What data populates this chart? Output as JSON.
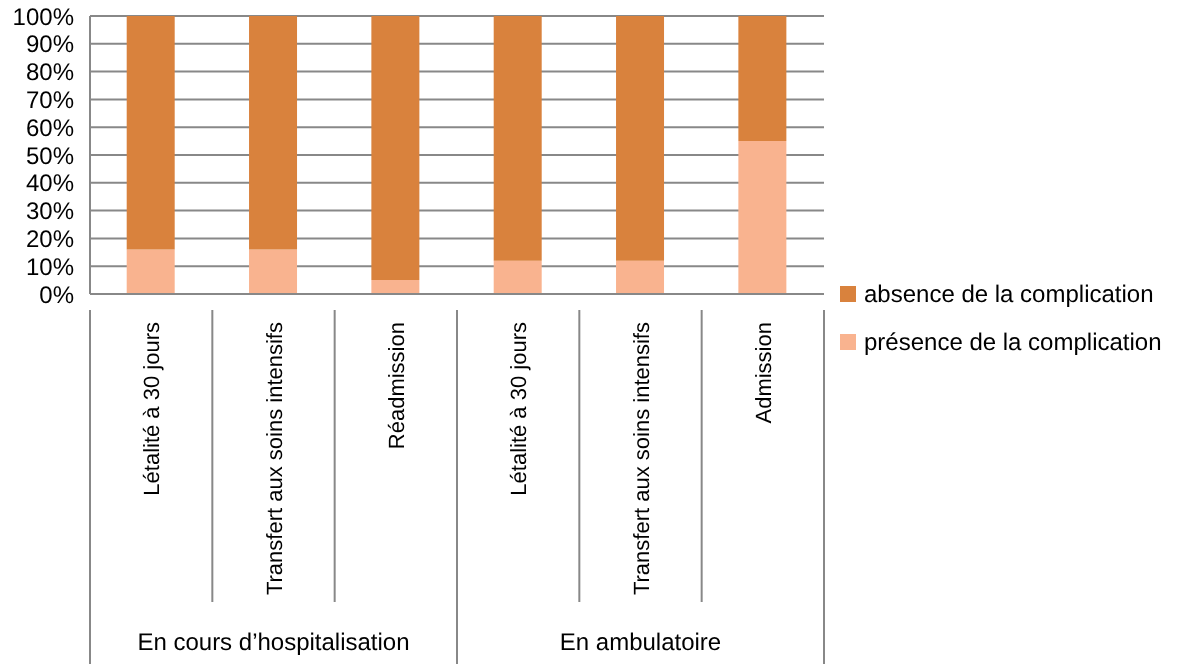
{
  "chart_data": {
    "type": "bar",
    "stacked": true,
    "categories": [
      "Létalité à 30 jours",
      "Transfert aux soins intensifs",
      "Réadmission",
      "Létalité à 30 jours",
      "Transfert aux soins intensifs",
      "Admission"
    ],
    "series": [
      {
        "name": "présence de la complication",
        "color": "#f9b38f",
        "values": [
          16,
          16,
          5,
          12,
          12,
          55
        ]
      },
      {
        "name": "absence de la complication",
        "color": "#d9823d",
        "values": [
          84,
          84,
          95,
          88,
          88,
          45
        ]
      }
    ],
    "ylim": [
      0,
      100
    ],
    "yticks": [
      {
        "value": 0,
        "label": "0%"
      },
      {
        "value": 10,
        "label": "10%"
      },
      {
        "value": 20,
        "label": "20%"
      },
      {
        "value": 30,
        "label": "30%"
      },
      {
        "value": 40,
        "label": "40%"
      },
      {
        "value": 50,
        "label": "50%"
      },
      {
        "value": 60,
        "label": "60%"
      },
      {
        "value": 70,
        "label": "70%"
      },
      {
        "value": 80,
        "label": "80%"
      },
      {
        "value": 90,
        "label": "90%"
      },
      {
        "value": 100,
        "label": "100%"
      }
    ],
    "grid": "y",
    "legend": "right",
    "annotations": [
      "En cours d’hospitalisation",
      "En ambulatoire"
    ]
  }
}
